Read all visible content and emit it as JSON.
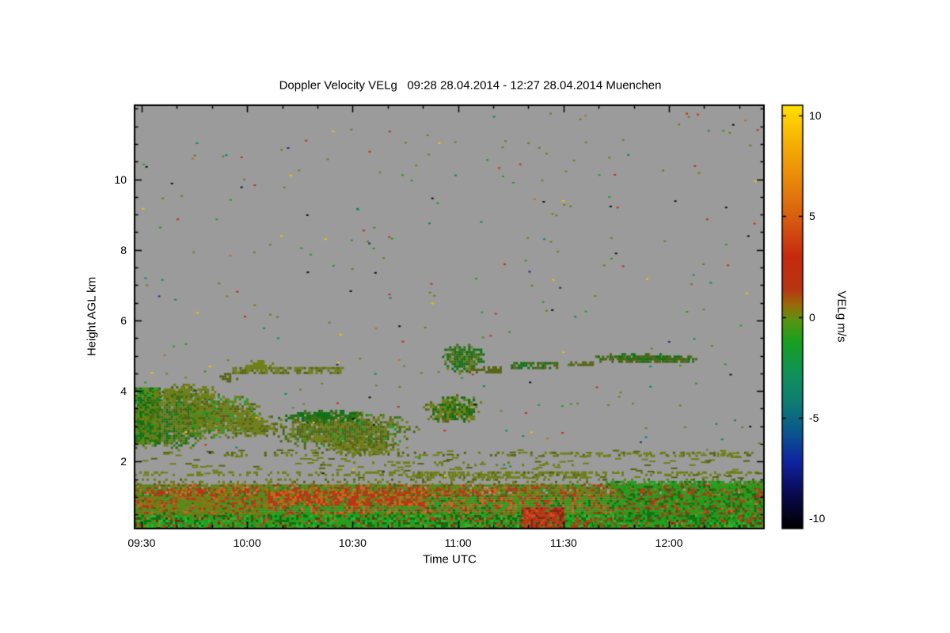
{
  "chart_data": {
    "type": "heatmap",
    "title": "Doppler Velocity VELg   09:28 28.04.2014 - 12:27 28.04.2014 Muenchen",
    "variable": "VELg",
    "time_start": "09:28 28.04.2014",
    "time_end": "12:27 28.04.2014",
    "station": "Muenchen",
    "xlabel": "Time UTC",
    "ylabel": "Height AGL km",
    "colorbar_label": "VELg m/s",
    "xlim": [
      9.4667,
      12.45
    ],
    "ylim": [
      0.1,
      12.1
    ],
    "x_minor_step": 0.1666667,
    "y_minor_step": 0.5,
    "plot_bg": "#9b9b9b",
    "frame_color": "#000000",
    "x_ticks": [
      {
        "label": "09:30",
        "value": 9.5
      },
      {
        "label": "10:00",
        "value": 10.0
      },
      {
        "label": "10:30",
        "value": 10.5
      },
      {
        "label": "11:00",
        "value": 11.0
      },
      {
        "label": "11:30",
        "value": 11.5
      },
      {
        "label": "12:00",
        "value": 12.0
      }
    ],
    "y_ticks": [
      {
        "label": "2",
        "value": 2
      },
      {
        "label": "4",
        "value": 4
      },
      {
        "label": "6",
        "value": 6
      },
      {
        "label": "8",
        "value": 8
      },
      {
        "label": "10",
        "value": 10
      }
    ],
    "colorbar": {
      "vmin": -10.5,
      "vmax": 10.5,
      "ticks": [
        {
          "label": "10",
          "value": 10
        },
        {
          "label": "5",
          "value": 5
        },
        {
          "label": "0",
          "value": 0
        },
        {
          "label": "-5",
          "value": -5
        },
        {
          "label": "-10",
          "value": -10
        }
      ],
      "stops": [
        {
          "v": -10.5,
          "c": "#000000"
        },
        {
          "v": -8.8,
          "c": "#0a0a50"
        },
        {
          "v": -7.2,
          "c": "#1023a0"
        },
        {
          "v": -5.6,
          "c": "#0b5a8c"
        },
        {
          "v": -4.2,
          "c": "#0e7d72"
        },
        {
          "v": -2.8,
          "c": "#119159"
        },
        {
          "v": -1.2,
          "c": "#18a01e"
        },
        {
          "v": -0.2,
          "c": "#589512"
        },
        {
          "v": 0.6,
          "c": "#9a6a08"
        },
        {
          "v": 1.4,
          "c": "#b93414"
        },
        {
          "v": 3.0,
          "c": "#c62a10"
        },
        {
          "v": 5.0,
          "c": "#d95f10"
        },
        {
          "v": 7.0,
          "c": "#eb8c0a"
        },
        {
          "v": 8.8,
          "c": "#f7b400"
        },
        {
          "v": 10.5,
          "c": "#ffe100"
        }
      ]
    },
    "features": [
      {
        "type": "fill",
        "t": [
          9.4667,
          12.45
        ],
        "h": [
          0.0,
          0.55
        ],
        "density": 1.0,
        "cell": 3,
        "colors": [
          [
            "#1fa01f",
            5
          ],
          [
            "#0e7012",
            3
          ],
          [
            "#2fb52f",
            2
          ],
          [
            "#6e7f16",
            1.5
          ],
          [
            "#c23118",
            1
          ],
          [
            "#8f1d10",
            0.5
          ]
        ]
      },
      {
        "type": "fill",
        "t": [
          9.4667,
          12.45
        ],
        "h": [
          0.55,
          1.05
        ],
        "density": 1.0,
        "cell": 3,
        "colors": [
          [
            "#1fa01f",
            3
          ],
          [
            "#6e7f16",
            3
          ],
          [
            "#c23118",
            2
          ],
          [
            "#0e7012",
            1
          ],
          [
            "#c96a1e",
            1
          ]
        ]
      },
      {
        "type": "fill",
        "t": [
          9.4667,
          10.1
        ],
        "h": [
          0.55,
          1.1
        ],
        "density": 0.6,
        "cell": 3,
        "colors": [
          [
            "#6e7f16",
            3
          ],
          [
            "#8a7a14",
            2
          ],
          [
            "#c23118",
            1
          ]
        ]
      },
      {
        "type": "fill",
        "t": [
          9.4667,
          12.45
        ],
        "h": [
          1.05,
          1.35
        ],
        "density": 0.95,
        "cell": 3,
        "colors": [
          [
            "#6e7f16",
            4
          ],
          [
            "#556312",
            2
          ],
          [
            "#c23118",
            1.2
          ],
          [
            "#c96a1e",
            1
          ],
          [
            "#1fa01f",
            1
          ]
        ]
      },
      {
        "type": "fill",
        "t": [
          10.1,
          10.85
        ],
        "h": [
          0.8,
          1.15
        ],
        "density": 0.8,
        "cell": 3,
        "colors": [
          [
            "#c23118",
            4
          ],
          [
            "#c96a1e",
            2
          ],
          [
            "#6e7f16",
            1
          ]
        ]
      },
      {
        "type": "fill",
        "t": [
          9.55,
          11.3
        ],
        "h": [
          1.12,
          1.24
        ],
        "density": 0.45,
        "cell": 3,
        "colors": [
          [
            "#c23118",
            2
          ],
          [
            "#c96a1e",
            1
          ],
          [
            "#6e7f16",
            1
          ]
        ]
      },
      {
        "type": "fill",
        "t": [
          11.3,
          11.5
        ],
        "h": [
          0.0,
          0.7
        ],
        "density": 0.9,
        "cell": 3,
        "colors": [
          [
            "#c23118",
            5
          ],
          [
            "#8f1d10",
            2
          ],
          [
            "#e04a20",
            1
          ]
        ]
      },
      {
        "type": "fill",
        "t": [
          11.5,
          11.8
        ],
        "h": [
          0.0,
          0.4
        ],
        "density": 0.6,
        "cell": 3,
        "colors": [
          [
            "#c23118",
            3
          ],
          [
            "#1fa01f",
            2
          ]
        ]
      },
      {
        "type": "fill",
        "t": [
          11.75,
          12.45
        ],
        "h": [
          0.3,
          1.3
        ],
        "density": 0.7,
        "cell": 3,
        "colors": [
          [
            "#1fa01f",
            4
          ],
          [
            "#0e7012",
            2
          ],
          [
            "#c23118",
            1.5
          ]
        ]
      },
      {
        "type": "fill",
        "t": [
          11.7,
          12.45
        ],
        "h": [
          1.28,
          1.45
        ],
        "density": 0.75,
        "cell": 3,
        "colors": [
          [
            "#1fa01f",
            3
          ],
          [
            "#0e7012",
            1
          ]
        ]
      },
      {
        "type": "fill",
        "t": [
          9.4667,
          12.45
        ],
        "h": [
          1.38,
          1.52
        ],
        "density": 0.25,
        "cell": 3,
        "colors": [
          [
            "#6e7f16",
            3
          ],
          [
            "#556312",
            1
          ]
        ]
      },
      {
        "type": "fill",
        "t": [
          9.4667,
          12.45
        ],
        "h": [
          1.6,
          1.72
        ],
        "density": 0.3,
        "cell": 3,
        "colors": [
          [
            "#6e7f16",
            1
          ]
        ]
      },
      {
        "type": "fill",
        "t": [
          10.8,
          11.6
        ],
        "h": [
          1.58,
          1.72
        ],
        "density": 0.5,
        "cell": 3,
        "colors": [
          [
            "#6e7f16",
            2
          ],
          [
            "#556312",
            1
          ]
        ]
      },
      {
        "type": "fill",
        "t": [
          9.8,
          12.45
        ],
        "h": [
          2.15,
          2.28
        ],
        "density": 0.22,
        "cell": 3,
        "colors": [
          [
            "#6e7f16",
            1
          ],
          [
            "#556312",
            1
          ]
        ]
      },
      {
        "type": "fill",
        "t": [
          11.45,
          12.3
        ],
        "h": [
          2.18,
          2.26
        ],
        "density": 0.35,
        "cell": 3,
        "colors": [
          [
            "#6e7f16",
            1
          ]
        ]
      },
      {
        "type": "fill",
        "t": [
          10.3,
          11.7
        ],
        "h": [
          1.9,
          2.0
        ],
        "density": 0.15,
        "cell": 3,
        "colors": [
          [
            "#6e7f16",
            1
          ]
        ]
      },
      {
        "type": "fill",
        "t": [
          9.4667,
          9.58
        ],
        "h": [
          2.5,
          4.1
        ],
        "density": 0.95,
        "cell": 3,
        "colors": [
          [
            "#0e7012",
            3
          ],
          [
            "#1fa01f",
            2
          ],
          [
            "#6e7f16",
            2
          ]
        ]
      },
      {
        "type": "blob",
        "c": [
          9.62,
          3.2
        ],
        "r": [
          0.22,
          0.85
        ],
        "density": 1.0,
        "cell": 3,
        "colors": [
          [
            "#0e7012",
            2
          ],
          [
            "#6e7f16",
            3
          ],
          [
            "#3f6f14",
            2
          ]
        ]
      },
      {
        "type": "blob",
        "c": [
          9.85,
          3.35
        ],
        "r": [
          0.2,
          0.6
        ],
        "density": 0.95,
        "cell": 3,
        "colors": [
          [
            "#6e7f16",
            4
          ],
          [
            "#556312",
            2
          ],
          [
            "#1fa01f",
            1
          ]
        ]
      },
      {
        "type": "blob",
        "c": [
          10.02,
          3.05
        ],
        "r": [
          0.12,
          0.35
        ],
        "density": 0.9,
        "cell": 3,
        "colors": [
          [
            "#6e7f16",
            3
          ],
          [
            "#556312",
            1
          ]
        ]
      },
      {
        "type": "blob",
        "c": [
          9.7,
          3.95
        ],
        "r": [
          0.15,
          0.3
        ],
        "density": 0.8,
        "cell": 3,
        "colors": [
          [
            "#6e7f16",
            3
          ],
          [
            "#3f6f14",
            1
          ]
        ]
      },
      {
        "type": "fill",
        "t": [
          9.93,
          10.45
        ],
        "h": [
          4.5,
          4.68
        ],
        "density": 0.75,
        "cell": 3,
        "colors": [
          [
            "#6e7f16",
            3
          ],
          [
            "#556312",
            2
          ]
        ]
      },
      {
        "type": "blob",
        "c": [
          10.05,
          4.75
        ],
        "r": [
          0.07,
          0.15
        ],
        "density": 0.8,
        "cell": 3,
        "colors": [
          [
            "#6e7f16",
            1
          ]
        ]
      },
      {
        "type": "blob",
        "c": [
          9.9,
          4.42
        ],
        "r": [
          0.05,
          0.12
        ],
        "density": 0.8,
        "cell": 3,
        "colors": [
          [
            "#556312",
            1
          ]
        ]
      },
      {
        "type": "blob",
        "c": [
          10.45,
          2.9
        ],
        "r": [
          0.33,
          0.5
        ],
        "density": 1.0,
        "cell": 3,
        "colors": [
          [
            "#6e7f16",
            4
          ],
          [
            "#556312",
            2
          ],
          [
            "#3f6f14",
            2
          ],
          [
            "#1fa01f",
            0.5
          ]
        ]
      },
      {
        "type": "blob",
        "c": [
          10.55,
          2.45
        ],
        "r": [
          0.18,
          0.25
        ],
        "density": 0.85,
        "cell": 3,
        "colors": [
          [
            "#6e7f16",
            2
          ],
          [
            "#556312",
            1
          ]
        ]
      },
      {
        "type": "blob",
        "c": [
          10.35,
          3.3
        ],
        "r": [
          0.2,
          0.18
        ],
        "density": 0.8,
        "cell": 3,
        "colors": [
          [
            "#0e7012",
            2
          ],
          [
            "#3f6f14",
            1
          ]
        ]
      },
      {
        "type": "blob",
        "c": [
          10.97,
          3.5
        ],
        "r": [
          0.14,
          0.42
        ],
        "density": 0.95,
        "cell": 3,
        "colors": [
          [
            "#6e7f16",
            3
          ],
          [
            "#0e7012",
            2
          ],
          [
            "#556312",
            1
          ]
        ]
      },
      {
        "type": "blob",
        "c": [
          11.02,
          4.95
        ],
        "r": [
          0.1,
          0.4
        ],
        "density": 0.95,
        "cell": 3,
        "colors": [
          [
            "#0e7012",
            3
          ],
          [
            "#3f6f14",
            2
          ],
          [
            "#6e7f16",
            1
          ]
        ]
      },
      {
        "type": "fill",
        "t": [
          11.05,
          11.2
        ],
        "h": [
          4.55,
          4.7
        ],
        "density": 0.6,
        "cell": 3,
        "colors": [
          [
            "#556312",
            1
          ]
        ]
      },
      {
        "type": "fill",
        "t": [
          11.25,
          11.47
        ],
        "h": [
          4.62,
          4.82
        ],
        "density": 0.7,
        "cell": 3,
        "colors": [
          [
            "#0e7012",
            2
          ],
          [
            "#556312",
            2
          ]
        ]
      },
      {
        "type": "fill",
        "t": [
          11.52,
          11.64
        ],
        "h": [
          4.72,
          4.84
        ],
        "density": 0.6,
        "cell": 3,
        "colors": [
          [
            "#556312",
            1
          ]
        ]
      },
      {
        "type": "blob",
        "c": [
          11.88,
          4.97
        ],
        "r": [
          0.22,
          0.13
        ],
        "density": 0.9,
        "cell": 3,
        "colors": [
          [
            "#0e7012",
            3
          ],
          [
            "#556312",
            2
          ]
        ]
      },
      {
        "type": "fill",
        "t": [
          11.67,
          12.12
        ],
        "h": [
          4.85,
          5.0
        ],
        "density": 0.55,
        "cell": 3,
        "colors": [
          [
            "#556312",
            2
          ],
          [
            "#0e7012",
            1
          ]
        ]
      },
      {
        "type": "speckle",
        "t": [
          9.5,
          12.43
        ],
        "h": [
          1.55,
          2.35
        ],
        "n": 140,
        "size": 2,
        "w": 8,
        "colors": [
          [
            "#6e7f16",
            3
          ],
          [
            "#556312",
            1
          ]
        ]
      },
      {
        "type": "speckle",
        "t": [
          9.5,
          12.43
        ],
        "h": [
          1.6,
          11.9
        ],
        "n": 300,
        "size": 2,
        "w": 3,
        "colors": [
          [
            "#6e7f16",
            3
          ],
          [
            "#c23118",
            1
          ],
          [
            "#00897b",
            1
          ],
          [
            "#f2c200",
            0.7
          ],
          [
            "#111111",
            0.7
          ],
          [
            "#1fa01f",
            1
          ],
          [
            "#c96a1e",
            0.5
          ],
          [
            "#203080",
            0.4
          ]
        ]
      }
    ]
  }
}
